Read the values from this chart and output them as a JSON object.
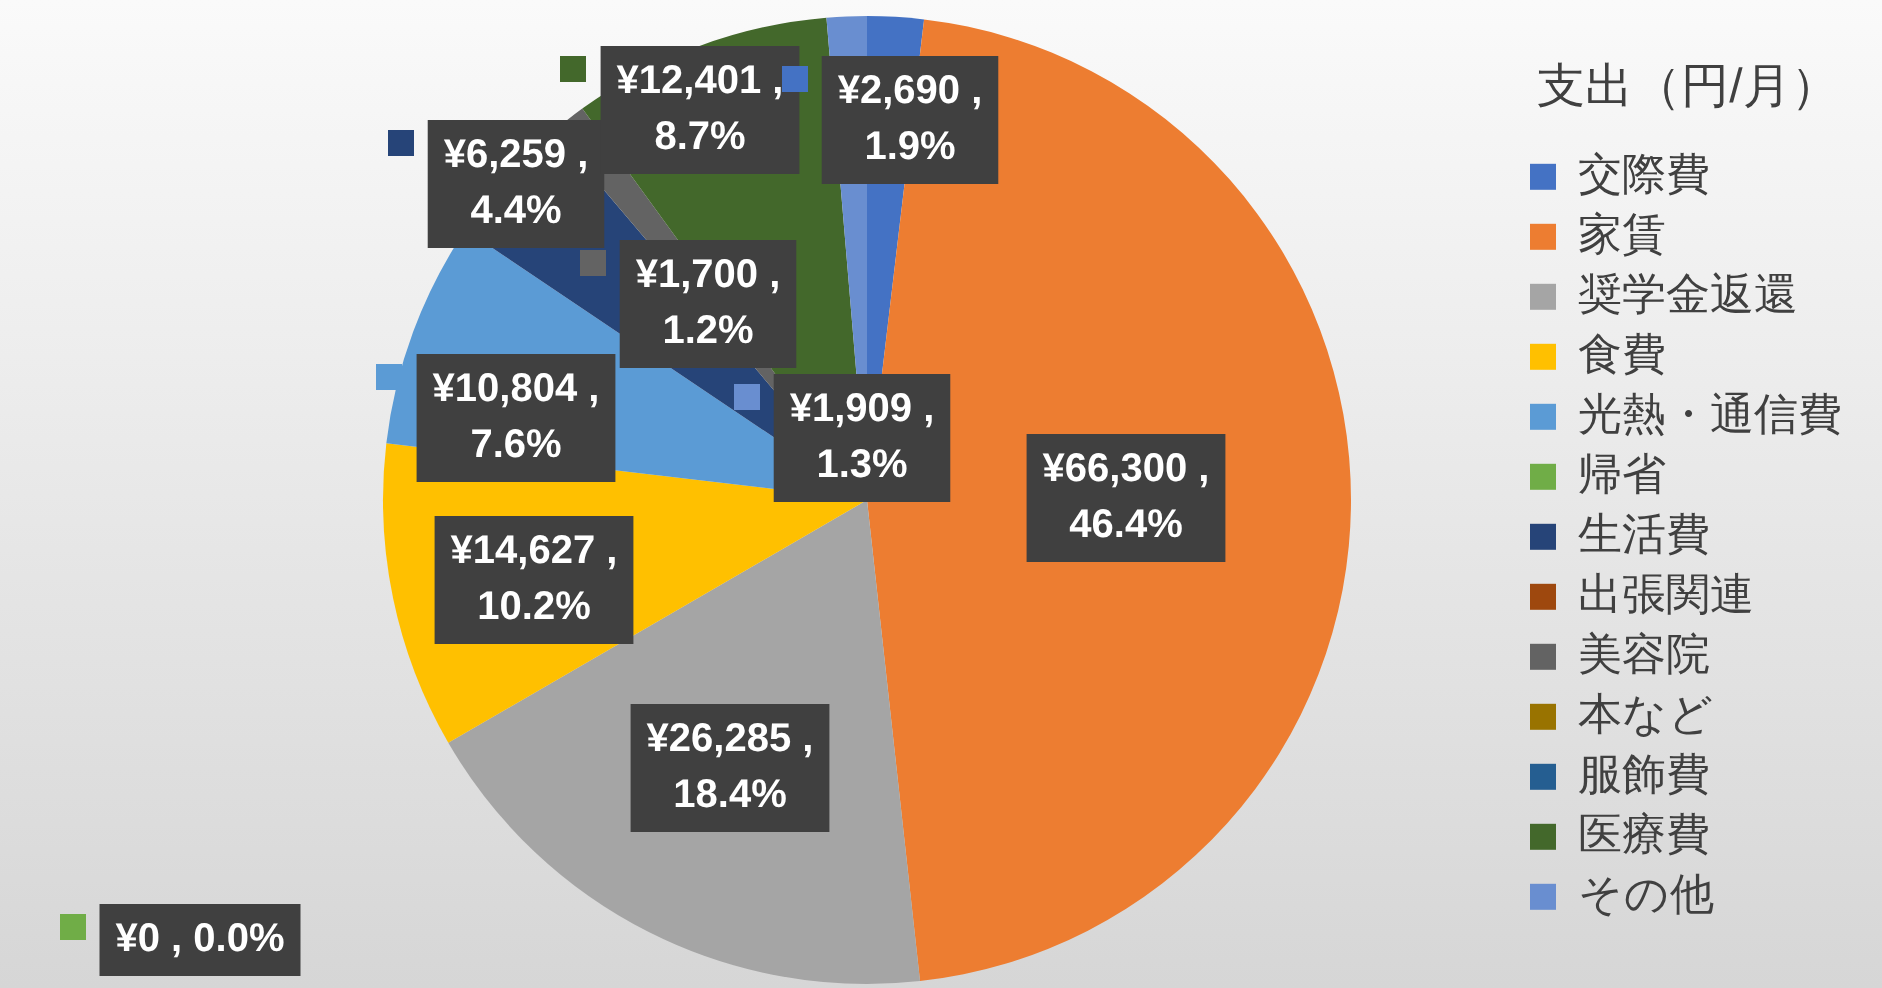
{
  "chart_data": {
    "type": "pie",
    "legend_title": "支出（円/月）",
    "legend": "right",
    "categories": [
      "交際費",
      "家賃",
      "奨学金返還",
      "食費",
      "光熱・通信費",
      "帰省",
      "生活費",
      "出張関連",
      "美容院",
      "本など",
      "服飾費",
      "医療費",
      "その他"
    ],
    "values": [
      2690,
      66300,
      26285,
      14627,
      10804,
      0,
      6259,
      0,
      1700,
      0,
      0,
      12401,
      1909
    ],
    "colors": [
      "#4472c4",
      "#ed7d31",
      "#a5a5a5",
      "#ffc000",
      "#5b9bd5",
      "#70ad47",
      "#264478",
      "#9e480e",
      "#636363",
      "#997300",
      "#255e91",
      "#43682b",
      "#698ed0"
    ],
    "value_labels": [
      "¥2,690 , 1.9%",
      "¥66,300 , 46.4%",
      "¥26,285 , 18.4%",
      "¥14,627 , 10.2%",
      "¥10,804 , 7.6%",
      "¥0 , 0.0%",
      "¥6,259 , 4.4%",
      null,
      "¥1,700 , 1.2%",
      null,
      null,
      "¥12,401 , 8.7%",
      "¥1,909 , 1.3%"
    ]
  }
}
